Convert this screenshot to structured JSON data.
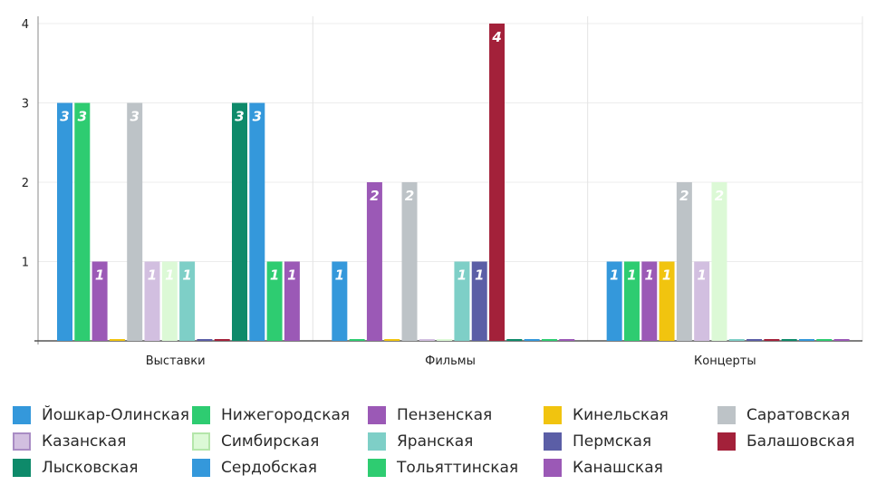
{
  "chart_data": {
    "type": "bar",
    "categories": [
      "Выставки",
      "Фильмы",
      "Концерты"
    ],
    "ylim": [
      0,
      4
    ],
    "yticks": [
      1,
      2,
      3,
      4
    ],
    "grid": true,
    "legend_position": "bottom",
    "series": [
      {
        "name": "Йошкар-Олинская",
        "color": "#3498db",
        "values": [
          3,
          1,
          1
        ]
      },
      {
        "name": "Нижегородская",
        "color": "#2ecc71",
        "values": [
          3,
          0,
          1
        ]
      },
      {
        "name": "Пензенская",
        "color": "#9b59b6",
        "values": [
          1,
          2,
          1
        ]
      },
      {
        "name": "Кинельская",
        "color": "#f1c40f",
        "values": [
          0,
          0,
          1
        ]
      },
      {
        "name": "Саратовская",
        "color": "#bdc3c7",
        "values": [
          3,
          2,
          2
        ]
      },
      {
        "name": "Казанская",
        "color": "#d2bfe0",
        "values": [
          1,
          0,
          1
        ]
      },
      {
        "name": "Симбирская",
        "color": "#dcf9d6",
        "values": [
          1,
          0,
          2
        ]
      },
      {
        "name": "Яранская",
        "color": "#7ecfc7",
        "values": [
          1,
          1,
          0
        ]
      },
      {
        "name": "Пермская",
        "color": "#5b5ea6",
        "values": [
          0,
          1,
          0
        ]
      },
      {
        "name": "Балашовская",
        "color": "#a3213a",
        "values": [
          0,
          4,
          0
        ]
      },
      {
        "name": "Лысковская",
        "color": "#0e8a6a",
        "values": [
          3,
          0,
          0
        ]
      },
      {
        "name": "Сердобская",
        "color": "#3498db",
        "values": [
          3,
          0,
          0
        ]
      },
      {
        "name": "Тольяттинская",
        "color": "#2ecc71",
        "values": [
          1,
          0,
          0
        ]
      },
      {
        "name": "Канашская",
        "color": "#9b59b6",
        "values": [
          1,
          0,
          0
        ]
      }
    ]
  }
}
